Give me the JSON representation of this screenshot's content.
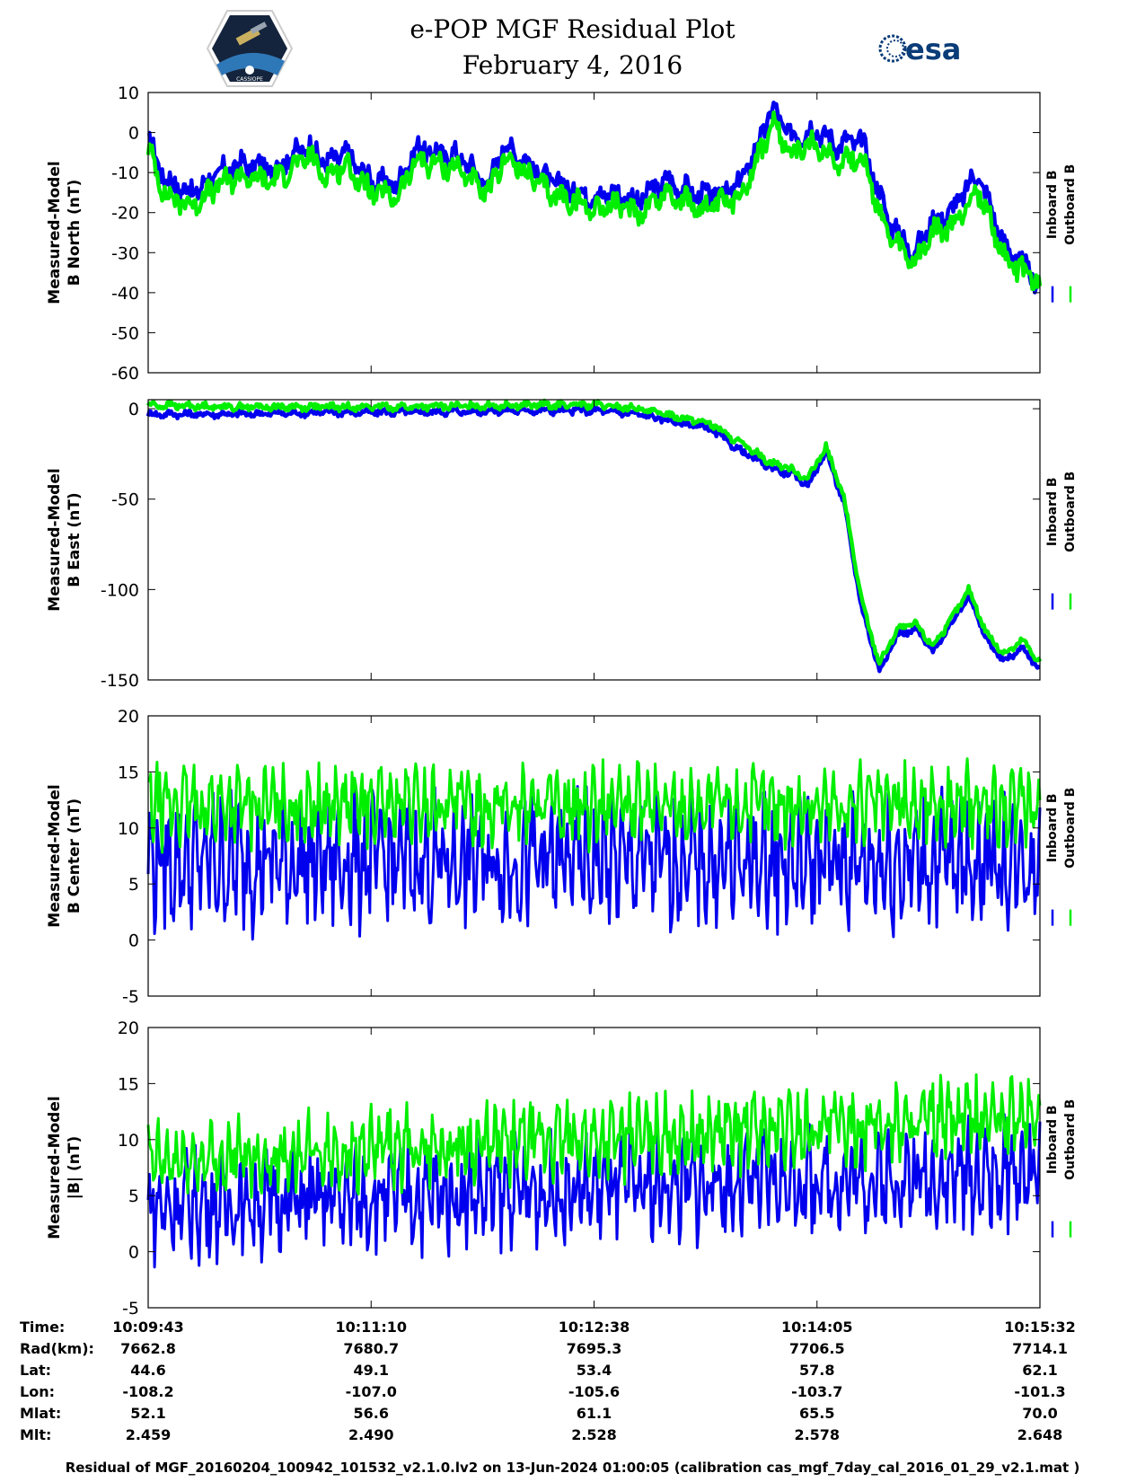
{
  "header": {
    "title_line1": "e-POP MGF Residual Plot",
    "title_line2": "February 4, 2016",
    "left_logo_text": "CASSIOPE",
    "right_logo_text": "esa"
  },
  "legend": {
    "inboard": "Inboard B",
    "outboard": "Outboard B"
  },
  "colors": {
    "inboard": "#0000ee",
    "outboard": "#00ee00"
  },
  "chart_data": [
    {
      "type": "line",
      "ylabel_line1": "Measured-Model",
      "ylabel_line2": "B North (nT)",
      "ylim": [
        -60,
        10
      ],
      "yticks": [
        10,
        0,
        -10,
        -20,
        -30,
        -40,
        -50,
        -60
      ],
      "x_range": [
        "10:09:43",
        "10:15:32"
      ],
      "series": [
        {
          "name": "Inboard B",
          "x": [
            0,
            0.02,
            0.05,
            0.08,
            0.1,
            0.14,
            0.18,
            0.2,
            0.22,
            0.25,
            0.28,
            0.3,
            0.35,
            0.38,
            0.4,
            0.45,
            0.5,
            0.52,
            0.55,
            0.58,
            0.62,
            0.66,
            0.68,
            0.7,
            0.72,
            0.75,
            0.77,
            0.8,
            0.83,
            0.86,
            0.88,
            0.9,
            0.93,
            0.96,
            1.0
          ],
          "values": [
            -2,
            -12,
            -15,
            -10,
            -8,
            -9,
            -3,
            -8,
            -5,
            -12,
            -13,
            -4,
            -6,
            -13,
            -3,
            -12,
            -16,
            -15,
            -17,
            -12,
            -16,
            -14,
            -5,
            6,
            -1,
            1,
            -3,
            -2,
            -22,
            -30,
            -22,
            -20,
            -10,
            -28,
            -38
          ]
        },
        {
          "name": "Outboard B",
          "x": [
            0,
            0.02,
            0.05,
            0.08,
            0.1,
            0.14,
            0.18,
            0.2,
            0.22,
            0.25,
            0.28,
            0.3,
            0.35,
            0.38,
            0.4,
            0.45,
            0.5,
            0.52,
            0.55,
            0.58,
            0.62,
            0.66,
            0.68,
            0.7,
            0.72,
            0.75,
            0.77,
            0.8,
            0.83,
            0.86,
            0.88,
            0.9,
            0.93,
            0.96,
            1.0
          ],
          "values": [
            -4,
            -16,
            -18,
            -13,
            -11,
            -12,
            -6,
            -11,
            -8,
            -15,
            -16,
            -7,
            -9,
            -16,
            -6,
            -15,
            -19,
            -18,
            -20,
            -15,
            -19,
            -17,
            -8,
            2,
            -5,
            -3,
            -7,
            -6,
            -26,
            -33,
            -25,
            -24,
            -14,
            -31,
            -38
          ]
        }
      ]
    },
    {
      "type": "line",
      "ylabel_line1": "Measured-Model",
      "ylabel_line2": "B East (nT)",
      "ylim": [
        -150,
        5
      ],
      "yticks": [
        0,
        -50,
        -100,
        -150
      ],
      "x_range": [
        "10:09:43",
        "10:15:32"
      ],
      "series": [
        {
          "name": "Inboard B",
          "x": [
            0,
            0.1,
            0.2,
            0.3,
            0.4,
            0.45,
            0.5,
            0.55,
            0.6,
            0.63,
            0.66,
            0.7,
            0.72,
            0.74,
            0.76,
            0.78,
            0.8,
            0.82,
            0.84,
            0.86,
            0.88,
            0.9,
            0.92,
            0.94,
            0.96,
            0.98,
            1.0
          ],
          "values": [
            -3,
            -3,
            -2,
            -2,
            -1,
            -1,
            -1,
            -3,
            -8,
            -11,
            -22,
            -33,
            -36,
            -42,
            -24,
            -52,
            -110,
            -145,
            -125,
            -122,
            -134,
            -120,
            -103,
            -128,
            -140,
            -132,
            -144
          ]
        },
        {
          "name": "Outboard B",
          "x": [
            0,
            0.1,
            0.2,
            0.3,
            0.4,
            0.45,
            0.5,
            0.55,
            0.6,
            0.63,
            0.66,
            0.7,
            0.72,
            0.74,
            0.76,
            0.78,
            0.8,
            0.82,
            0.84,
            0.86,
            0.88,
            0.9,
            0.92,
            0.94,
            0.96,
            0.98,
            1.0
          ],
          "values": [
            2,
            1,
            1,
            1,
            2,
            2,
            2,
            0,
            -5,
            -8,
            -18,
            -30,
            -33,
            -39,
            -21,
            -49,
            -106,
            -141,
            -122,
            -119,
            -131,
            -117,
            -100,
            -124,
            -136,
            -128,
            -140
          ]
        }
      ]
    },
    {
      "type": "line",
      "ylabel_line1": "Measured-Model",
      "ylabel_line2": "B Center (nT)",
      "ylim": [
        -5,
        20
      ],
      "yticks": [
        20,
        15,
        10,
        5,
        0,
        -5
      ],
      "x_range": [
        "10:09:43",
        "10:15:32"
      ],
      "series": [
        {
          "name": "Inboard B",
          "mean": 7,
          "amplitude": 5
        },
        {
          "name": "Outboard B",
          "mean": 12,
          "amplitude": 3
        }
      ]
    },
    {
      "type": "line",
      "ylabel_line1": "Measured-Model",
      "ylabel_line2": "|B| (nT)",
      "ylim": [
        -5,
        20
      ],
      "yticks": [
        20,
        15,
        10,
        5,
        0,
        -5
      ],
      "x_range": [
        "10:09:43",
        "10:15:32"
      ],
      "series": [
        {
          "name": "Inboard B",
          "mean_start": 4,
          "mean_end": 7,
          "amplitude": 4
        },
        {
          "name": "Outboard B",
          "mean_start": 8,
          "mean_end": 12,
          "amplitude": 3
        }
      ]
    }
  ],
  "table": {
    "labels": [
      "Time:",
      "Rad(km):",
      "Lat:",
      "Lon:",
      "Mlat:",
      "Mlt:"
    ],
    "columns": [
      [
        "10:09:43",
        "7662.8",
        "44.6",
        "-108.2",
        "52.1",
        "2.459"
      ],
      [
        "10:11:10",
        "7680.7",
        "49.1",
        "-107.0",
        "56.6",
        "2.490"
      ],
      [
        "10:12:38",
        "7695.3",
        "53.4",
        "-105.6",
        "61.1",
        "2.528"
      ],
      [
        "10:14:05",
        "7706.5",
        "57.8",
        "-103.7",
        "65.5",
        "2.578"
      ],
      [
        "10:15:32",
        "7714.1",
        "62.1",
        "-101.3",
        "70.0",
        "2.648"
      ]
    ]
  },
  "footer": "Residual of MGF_20160204_100942_101532_v2.1.0.lv2 on 13-Jun-2024 01:00:05 (calibration cas_mgf_7day_cal_2016_01_29_v2.1.mat )"
}
